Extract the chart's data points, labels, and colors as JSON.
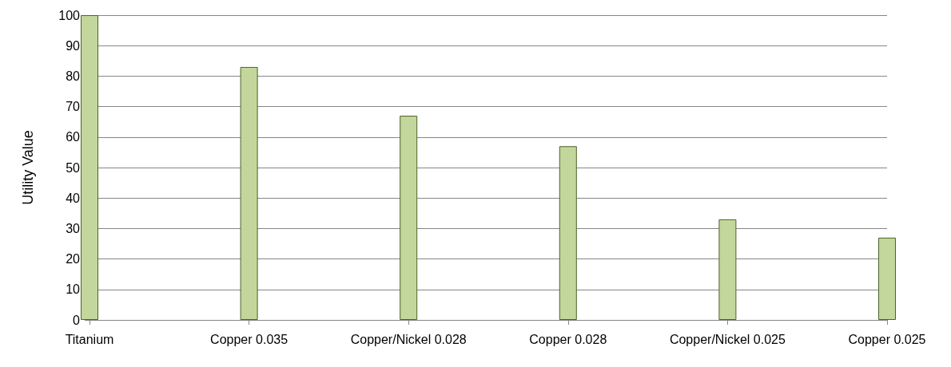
{
  "chart_data": {
    "type": "bar",
    "ylabel": "Utility Value",
    "categories": [
      "Titanium",
      "Copper 0.035",
      "Copper/Nickel 0.028",
      "Copper 0.028",
      "Copper/Nickel 0.025",
      "Copper 0.025"
    ],
    "series": [
      {
        "color": "#c3d69b",
        "values": [
          100,
          83,
          67,
          57,
          33,
          27
        ]
      }
    ],
    "ylim": [
      0,
      100
    ],
    "yticks": [
      0,
      10,
      20,
      30,
      40,
      50,
      60,
      70,
      80,
      90,
      100
    ],
    "grid": "y"
  }
}
